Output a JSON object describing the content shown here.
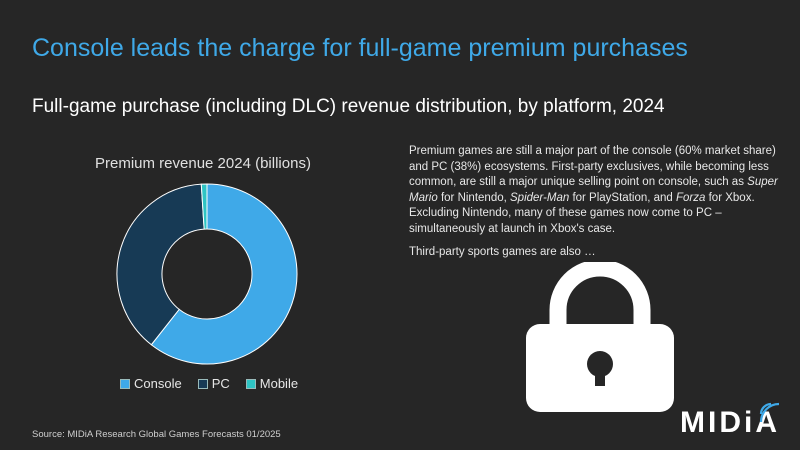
{
  "title": "Console leads the charge for full-game premium purchases",
  "subtitle": "Full-game purchase (including DLC) revenue distribution, by platform, 2024",
  "chart_data": {
    "type": "pie",
    "title": "Premium revenue 2024 (billions)",
    "categories": [
      "Console",
      "PC",
      "Mobile"
    ],
    "values": [
      60,
      38,
      1
    ],
    "colors": [
      "#3fa9e8",
      "#173a55",
      "#2ec4c4"
    ],
    "legend_position": "bottom",
    "donut": true
  },
  "body": {
    "p1_a": "Premium games are still a major part of the console (60% market share) and PC (38%) ecosystems. First-party exclusives, while becoming less common, are still a major unique selling point on console, such as ",
    "p1_italic1": "Super Mario",
    "p1_b": " for Nintendo, ",
    "p1_italic2": "Spider-Man",
    "p1_c": " for PlayStation, and ",
    "p1_italic3": "Forza",
    "p1_d": " for Xbox. Excluding Nintendo, many of these games now come to PC – simultaneously at launch in Xbox's case.",
    "p2": "Third-party sports games are also …"
  },
  "icons": {
    "lock": "lock-icon"
  },
  "source": "Source: MIDiA Research Global Games Forecasts 01/2025",
  "logo": "MIDiA"
}
